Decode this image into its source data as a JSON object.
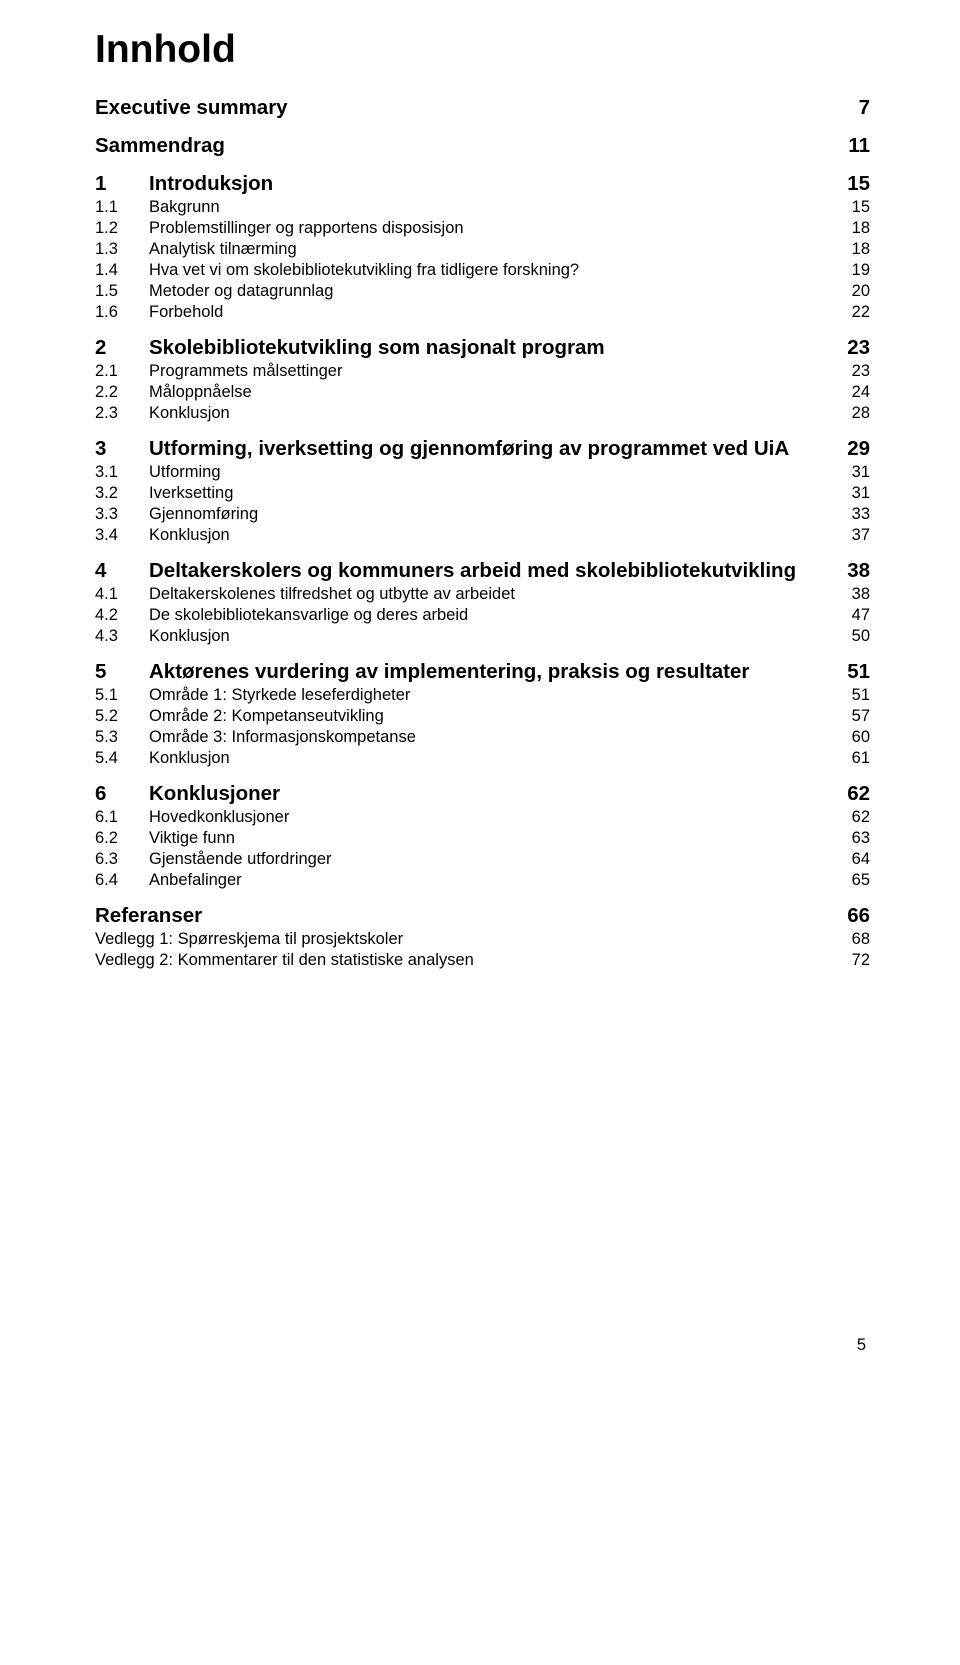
{
  "title": "Innhold",
  "page_number": "5",
  "colors": {
    "text": "#000000",
    "background": "#ffffff"
  },
  "typography": {
    "title_fontsize": 39,
    "level0_fontsize": 20.5,
    "level1_fontsize": 16.5,
    "font_family": "Arial"
  },
  "toc": [
    {
      "level": 0,
      "num": "",
      "label": "Executive summary",
      "page": "7"
    },
    {
      "level": 0,
      "num": "",
      "label": "Sammendrag",
      "page": "11"
    },
    {
      "level": 0,
      "num": "1",
      "label": "Introduksjon",
      "page": "15"
    },
    {
      "level": 1,
      "num": "1.1",
      "label": "Bakgrunn",
      "page": "15"
    },
    {
      "level": 1,
      "num": "1.2",
      "label": "Problemstillinger og rapportens disposisjon",
      "page": "18"
    },
    {
      "level": 1,
      "num": "1.3",
      "label": "Analytisk tilnærming",
      "page": "18"
    },
    {
      "level": 1,
      "num": "1.4",
      "label": "Hva vet vi om skolebibliotekutvikling fra tidligere forskning?",
      "page": "19"
    },
    {
      "level": 1,
      "num": "1.5",
      "label": "Metoder og datagrunnlag",
      "page": "20"
    },
    {
      "level": 1,
      "num": "1.6",
      "label": "Forbehold",
      "page": "22"
    },
    {
      "level": 0,
      "num": "2",
      "label": "Skolebibliotekutvikling som nasjonalt program",
      "page": "23"
    },
    {
      "level": 1,
      "num": "2.1",
      "label": "Programmets målsettinger",
      "page": "23"
    },
    {
      "level": 1,
      "num": "2.2",
      "label": "Måloppnåelse",
      "page": "24"
    },
    {
      "level": 1,
      "num": "2.3",
      "label": "Konklusjon",
      "page": "28"
    },
    {
      "level": 0,
      "num": "3",
      "label": "Utforming, iverksetting og gjennomføring av programmet ved UiA",
      "page": "29"
    },
    {
      "level": 1,
      "num": "3.1",
      "label": "Utforming",
      "page": "31"
    },
    {
      "level": 1,
      "num": "3.2",
      "label": "Iverksetting",
      "page": "31"
    },
    {
      "level": 1,
      "num": "3.3",
      "label": "Gjennomføring",
      "page": "33"
    },
    {
      "level": 1,
      "num": "3.4",
      "label": "Konklusjon",
      "page": "37"
    },
    {
      "level": 0,
      "num": "4",
      "label": "Deltakerskolers og kommuners arbeid med skolebibliotekutvikling",
      "page": "38"
    },
    {
      "level": 1,
      "num": "4.1",
      "label": "Deltakerskolenes tilfredshet og utbytte av arbeidet",
      "page": "38"
    },
    {
      "level": 1,
      "num": "4.2",
      "label": "De skolebibliotekansvarlige og deres arbeid",
      "page": "47"
    },
    {
      "level": 1,
      "num": "4.3",
      "label": "Konklusjon",
      "page": "50"
    },
    {
      "level": 0,
      "num": "5",
      "label": "Aktørenes vurdering av implementering, praksis og resultater",
      "page": "51"
    },
    {
      "level": 1,
      "num": "5.1",
      "label": "Område 1: Styrkede leseferdigheter",
      "page": "51"
    },
    {
      "level": 1,
      "num": "5.2",
      "label": "Område 2: Kompetanseutvikling",
      "page": "57"
    },
    {
      "level": 1,
      "num": "5.3",
      "label": "Område 3: Informasjonskompetanse",
      "page": "60"
    },
    {
      "level": 1,
      "num": "5.4",
      "label": "Konklusjon",
      "page": "61"
    },
    {
      "level": 0,
      "num": "6",
      "label": "Konklusjoner",
      "page": "62"
    },
    {
      "level": 1,
      "num": "6.1",
      "label": "Hovedkonklusjoner",
      "page": "62"
    },
    {
      "level": 1,
      "num": "6.2",
      "label": "Viktige funn",
      "page": "63"
    },
    {
      "level": 1,
      "num": "6.3",
      "label": "Gjenstående utfordringer",
      "page": "64"
    },
    {
      "level": 1,
      "num": "6.4",
      "label": "Anbefalinger",
      "page": "65"
    },
    {
      "level": 0,
      "num": "",
      "label": "Referanser",
      "page": "66"
    },
    {
      "level": 1,
      "num": "",
      "label": "Vedlegg 1: Spørreskjema til prosjektskoler",
      "page": "68"
    },
    {
      "level": 1,
      "num": "",
      "label": "Vedlegg 2: Kommentarer til den statistiske analysen",
      "page": "72"
    }
  ]
}
